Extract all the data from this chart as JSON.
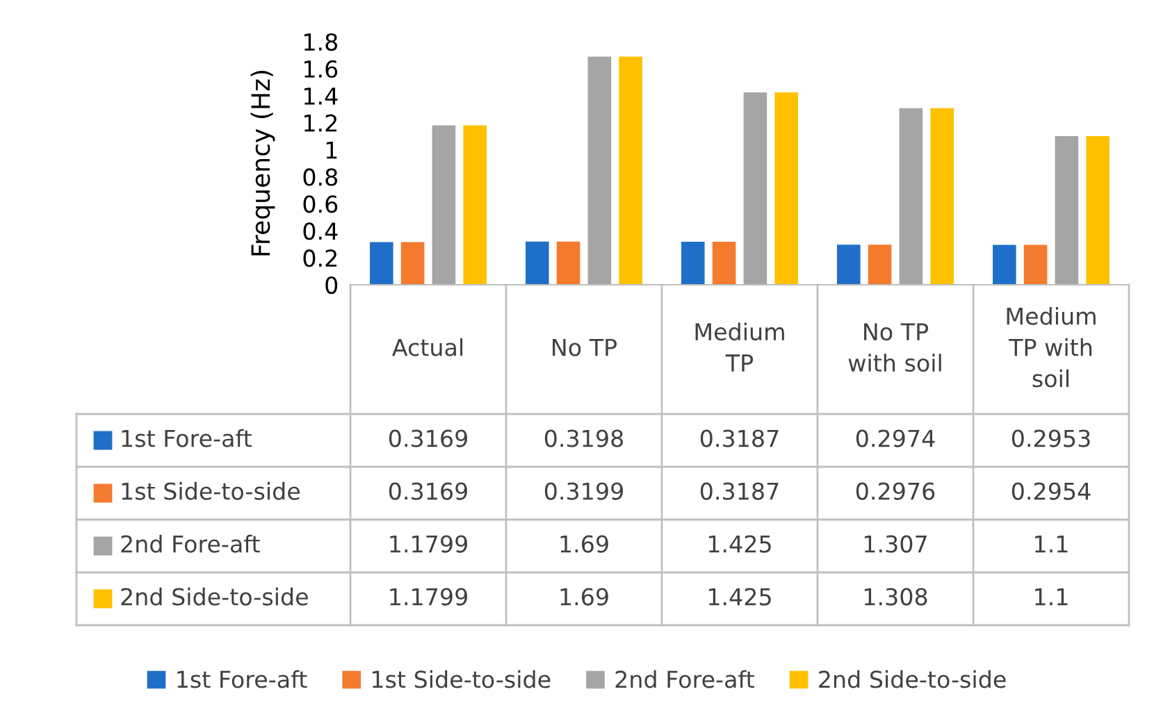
{
  "chart_data": {
    "type": "bar",
    "ylabel": "Frequency (Hz)",
    "categories": [
      "Actual",
      "No TP",
      "Medium TP",
      "No TP with soil",
      "Medium TP with soil"
    ],
    "series": [
      {
        "name": "1st Fore-aft",
        "color": "#1f6fc9",
        "values": [
          0.3169,
          0.3198,
          0.3187,
          0.2974,
          0.2953
        ]
      },
      {
        "name": "1st Side-to-side",
        "color": "#f47b2e",
        "values": [
          0.3169,
          0.3199,
          0.3187,
          0.2976,
          0.2954
        ]
      },
      {
        "name": "2nd Fore-aft",
        "color": "#a5a5a5",
        "values": [
          1.1799,
          1.69,
          1.425,
          1.307,
          1.1
        ]
      },
      {
        "name": "2nd Side-to-side",
        "color": "#ffc000",
        "values": [
          1.1799,
          1.69,
          1.425,
          1.308,
          1.1
        ]
      }
    ],
    "ylim": [
      0,
      1.8
    ],
    "yticks": [
      0,
      0.2,
      0.4,
      0.6,
      0.8,
      1,
      1.2,
      1.4,
      1.6,
      1.8
    ],
    "grid": false,
    "legend": "bottom",
    "data_labels": true
  }
}
